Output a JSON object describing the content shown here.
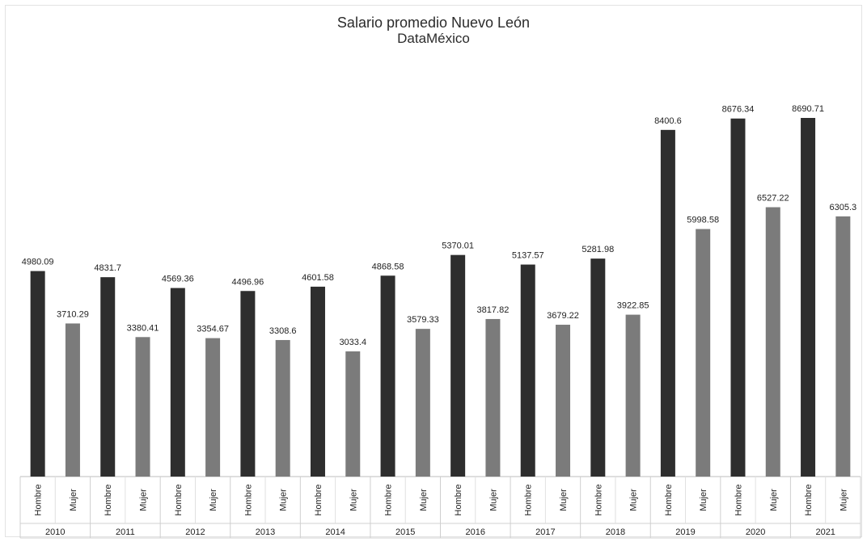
{
  "chart_data": {
    "type": "bar",
    "title": "Salario promedio Nuevo León",
    "subtitle": "DataMéxico",
    "categories": [
      "2010",
      "2011",
      "2012",
      "2013",
      "2014",
      "2015",
      "2016",
      "2017",
      "2018",
      "2019",
      "2020",
      "2021"
    ],
    "sub_categories": [
      "Hombre",
      "Mujer"
    ],
    "series": [
      {
        "name": "Hombre",
        "values": [
          4980.09,
          4831.7,
          4569.36,
          4496.96,
          4601.58,
          4868.58,
          5370.01,
          5137.57,
          5281.98,
          8400.6,
          8676.34,
          8690.71
        ]
      },
      {
        "name": "Mujer",
        "values": [
          3710.29,
          3380.41,
          3354.67,
          3308.6,
          3033.4,
          3579.33,
          3817.82,
          3679.22,
          3922.85,
          5998.58,
          6527.22,
          6305.3
        ]
      }
    ],
    "value_labels": {
      "Hombre": [
        "4980.09",
        "4831.7",
        "4569.36",
        "4496.96",
        "4601.58",
        "4868.58",
        "5370.01",
        "5137.57",
        "5281.98",
        "8400.6",
        "8676.34",
        "8690.71"
      ],
      "Mujer": [
        "3710.29",
        "3380.41",
        "3354.67",
        "3308.6",
        "3033.4",
        "3579.33",
        "3817.82",
        "3679.22",
        "3922.85",
        "5998.58",
        "6527.22",
        "6305.3"
      ]
    },
    "ylim": [
      0,
      8900
    ],
    "grid": false,
    "colors": {
      "Hombre": "#2e2e2e",
      "Mujer": "#7b7b7b"
    }
  }
}
